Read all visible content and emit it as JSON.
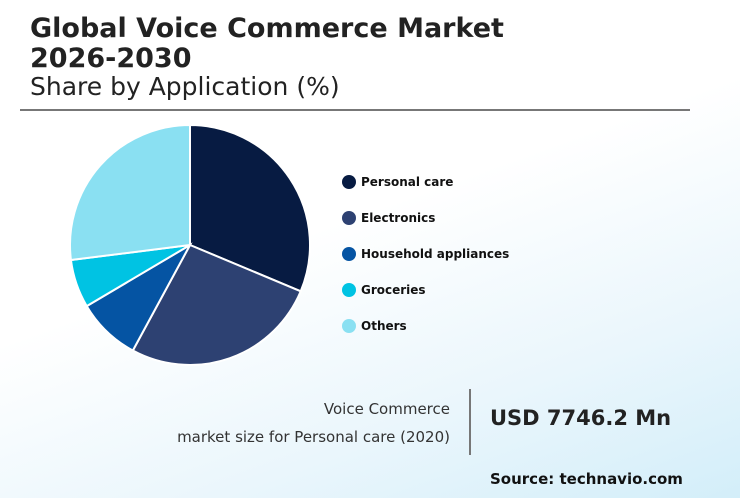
{
  "header": {
    "title_line1": "Global Voice Commerce Market",
    "title_line2": "2026-2030",
    "subtitle": "Share by Application (%)"
  },
  "chart_data": {
    "type": "pie",
    "title": "Share by Application (%)",
    "categories": [
      "Personal care",
      "Electronics",
      "Household appliances",
      "Groceries",
      "Others"
    ],
    "values": [
      31.3,
      26.6,
      8.6,
      6.5,
      27.0
    ],
    "colors": [
      "#071b42",
      "#2d4172",
      "#0554a3",
      "#00c3e3",
      "#8ae0f2"
    ],
    "legend": "right"
  },
  "footer": {
    "label_line1": "Voice Commerce",
    "label_line2": "market size for Personal care (2020)",
    "value": "USD 7746.2 Mn",
    "source": "Source: technavio.com"
  }
}
